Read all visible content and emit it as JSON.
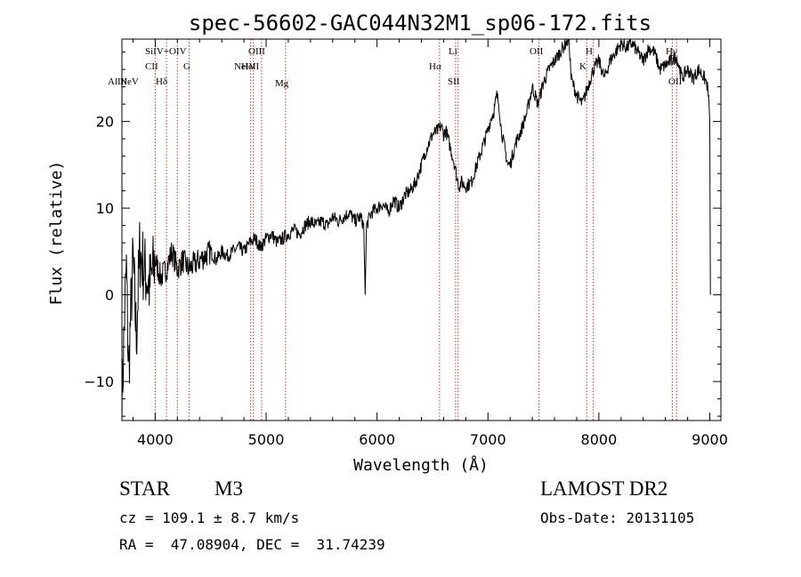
{
  "chart_data": {
    "type": "line",
    "title": "spec-56602-GAC044N32M1_sp06-172.fits",
    "xlabel": "Wavelength (Å)",
    "ylabel": "Flux (relative)",
    "xlim": [
      3700,
      9100
    ],
    "ylim": [
      -14.5,
      29.5
    ],
    "x_ticks": [
      4000,
      5000,
      6000,
      7000,
      8000,
      9000
    ],
    "y_ticks": [
      -10,
      0,
      10,
      20
    ],
    "grid": false,
    "series": [
      {
        "x": [
          3700,
          3720,
          3740,
          3760,
          3780,
          3800,
          3830,
          3860,
          3900,
          3950,
          4000,
          4050,
          4100,
          4150,
          4200,
          4250,
          4300,
          4350,
          4400,
          4450,
          4500,
          4550,
          4600,
          4650,
          4700,
          4750,
          4800,
          4850,
          4900,
          4950,
          5000,
          5050,
          5100,
          5150,
          5200,
          5250,
          5300,
          5350,
          5400,
          5450,
          5500,
          5550,
          5600,
          5650,
          5700,
          5750,
          5800,
          5850,
          5880,
          5893,
          5905,
          5950,
          6000,
          6050,
          6100,
          6150,
          6200,
          6250,
          6300,
          6350,
          6400,
          6450,
          6500,
          6550,
          6580,
          6600,
          6620,
          6650,
          6680,
          6700,
          6720,
          6740,
          6760,
          6800,
          6850,
          6900,
          6950,
          7000,
          7030,
          7050,
          7080,
          7100,
          7120,
          7150,
          7180,
          7200,
          7250,
          7300,
          7350,
          7400,
          7450,
          7500,
          7550,
          7600,
          7650,
          7700,
          7730,
          7750,
          7800,
          7850,
          7900,
          7950,
          8000,
          8050,
          8100,
          8150,
          8200,
          8250,
          8300,
          8350,
          8400,
          8450,
          8500,
          8550,
          8600,
          8650,
          8700,
          8750,
          8800,
          8850,
          8900,
          8950,
          8970,
          8990,
          9000,
          9005
        ],
        "y": [
          -13,
          -4,
          3,
          -9,
          -2,
          4,
          -5,
          5,
          3,
          1,
          4,
          2,
          3,
          5,
          3,
          4,
          3,
          3.5,
          4,
          4.5,
          5,
          4,
          5,
          4.5,
          5,
          5.5,
          5,
          6,
          6.5,
          5.5,
          6.5,
          7,
          6,
          6.5,
          7,
          7.5,
          7,
          8,
          8.5,
          8,
          8.5,
          8,
          9,
          8.5,
          9,
          9.5,
          8.5,
          9,
          8,
          0,
          8,
          9.5,
          10,
          10.5,
          9.5,
          11,
          10,
          11.5,
          12,
          13,
          15,
          17,
          18.5,
          19,
          19.5,
          18.5,
          19,
          17.5,
          16,
          15,
          13.5,
          12.5,
          13,
          12.5,
          13,
          15,
          17,
          19,
          20.5,
          21,
          23,
          22,
          19,
          17,
          15,
          15,
          17.5,
          19,
          21,
          24,
          22,
          24.5,
          26,
          27,
          28,
          29,
          29.5,
          25,
          23,
          22,
          24,
          26,
          27,
          25,
          27,
          28,
          29,
          28.5,
          29,
          28,
          27,
          28.5,
          28,
          26,
          26.5,
          27,
          27.5,
          25,
          26,
          25,
          26,
          25,
          24.5,
          23,
          20,
          0
        ]
      }
    ],
    "line_markers": [
      {
        "label": "",
        "x": 4000
      },
      {
        "label": "",
        "x": 4102
      },
      {
        "label": "",
        "x": 4200
      },
      {
        "label": "",
        "x": 4305
      },
      {
        "label": "",
        "x": 4861
      },
      {
        "label": "",
        "x": 4885
      },
      {
        "label": "",
        "x": 4959
      },
      {
        "label": "",
        "x": 5175
      },
      {
        "label": "",
        "x": 6563
      },
      {
        "label": "",
        "x": 6708
      },
      {
        "label": "",
        "x": 6731
      },
      {
        "label": "",
        "x": 7460
      },
      {
        "label": "",
        "x": 7890
      },
      {
        "label": "",
        "x": 7950
      },
      {
        "label": "",
        "x": 8662
      },
      {
        "label": "",
        "x": 8700
      }
    ],
    "line_labels": [
      "AlIII",
      "NeV",
      "SiIV+OIV",
      "CII",
      "G",
      "Hδ",
      "OIII",
      "NeIV",
      "HeII",
      "Mg",
      "Hα",
      "Li",
      "SII",
      "OII",
      "H",
      "K",
      "Hγ",
      "OII"
    ]
  },
  "info": {
    "object_type": "STAR",
    "subclass": "M3",
    "survey": "LAMOST DR2",
    "cz": "cz = 109.1 ± 8.7 km/s",
    "obs_date": "Obs-Date: 20131105",
    "radec": "RA =  47.08904, DEC =  31.74239"
  }
}
